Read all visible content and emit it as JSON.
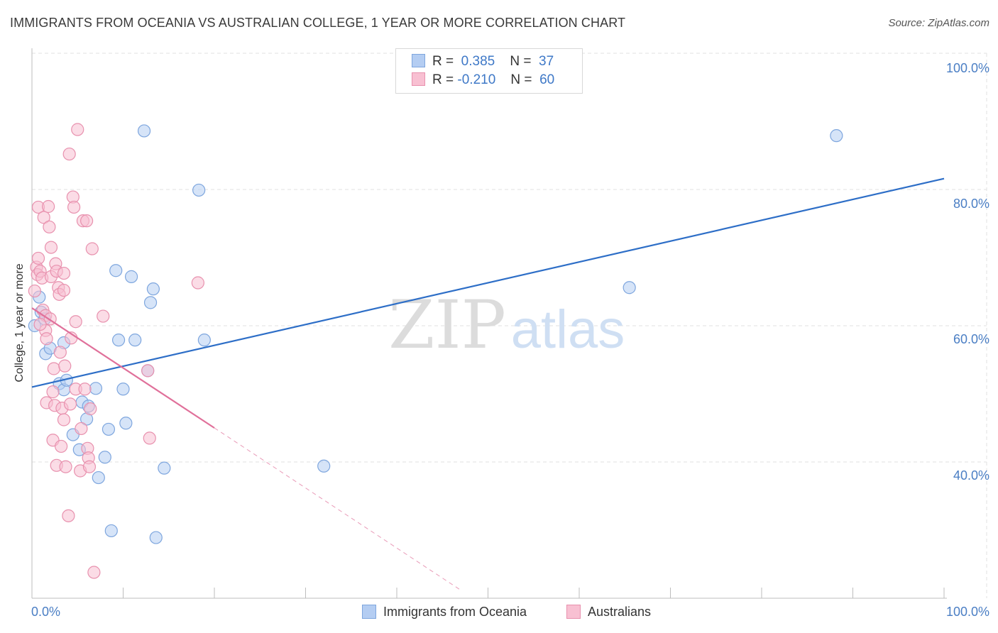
{
  "title": "IMMIGRANTS FROM OCEANIA VS AUSTRALIAN COLLEGE, 1 YEAR OR MORE CORRELATION CHART",
  "source": "Source: ZipAtlas.com",
  "watermark": {
    "zip": "ZIP",
    "atlas": "atlas"
  },
  "legend": {
    "r_label": "R =",
    "n_label": "N =",
    "series1": {
      "r": "0.385",
      "n": "37"
    },
    "series2": {
      "r": "-0.210",
      "n": "60"
    }
  },
  "bottom_legend": {
    "series1": "Immigrants from Oceania",
    "series2": "Australians"
  },
  "chart_data": {
    "type": "scatter",
    "title": "IMMIGRANTS FROM OCEANIA VS AUSTRALIAN COLLEGE, 1 YEAR OR MORE CORRELATION CHART",
    "xlabel": "",
    "ylabel": "College, 1 year or more",
    "xlim": [
      0,
      100
    ],
    "ylim": [
      20,
      100
    ],
    "x_tick_labels": [
      "0.0%",
      "100.0%"
    ],
    "y_ticks": [
      40,
      60,
      80,
      100
    ],
    "y_tick_labels": [
      "40.0%",
      "60.0%",
      "80.0%",
      "100.0%"
    ],
    "grid": true,
    "colors": {
      "series1_fill": "#b4cdf2",
      "series1_stroke": "#7ea6de",
      "series1_line": "#2d6ec7",
      "series2_fill": "#f8c0d2",
      "series2_stroke": "#e891ae",
      "series2_line": "#e0709a"
    },
    "series": [
      {
        "name": "Immigrants from Oceania",
        "r": 0.385,
        "n": 37,
        "trend": {
          "x0": 0,
          "y0": 51.0,
          "x1": 100,
          "y1": 81.6
        },
        "points": [
          [
            0.3,
            60.0
          ],
          [
            0.8,
            64.2
          ],
          [
            1.0,
            62.0
          ],
          [
            1.4,
            61.0
          ],
          [
            1.5,
            55.9
          ],
          [
            2.0,
            56.7
          ],
          [
            3.5,
            57.5
          ],
          [
            3.0,
            51.5
          ],
          [
            3.5,
            50.6
          ],
          [
            3.8,
            52.0
          ],
          [
            4.5,
            44.0
          ],
          [
            5.2,
            41.8
          ],
          [
            5.5,
            48.8
          ],
          [
            6.2,
            48.2
          ],
          [
            6.0,
            46.3
          ],
          [
            7.0,
            50.8
          ],
          [
            7.3,
            37.7
          ],
          [
            8.0,
            40.7
          ],
          [
            8.4,
            44.8
          ],
          [
            8.7,
            29.9
          ],
          [
            9.2,
            68.1
          ],
          [
            9.5,
            57.9
          ],
          [
            10.0,
            50.7
          ],
          [
            10.3,
            45.7
          ],
          [
            10.9,
            67.2
          ],
          [
            11.3,
            57.9
          ],
          [
            12.3,
            88.6
          ],
          [
            12.7,
            53.4
          ],
          [
            13.0,
            63.4
          ],
          [
            13.3,
            65.4
          ],
          [
            13.6,
            28.9
          ],
          [
            14.5,
            39.1
          ],
          [
            18.3,
            79.9
          ],
          [
            18.9,
            57.9
          ],
          [
            32.0,
            39.4
          ],
          [
            65.5,
            65.6
          ],
          [
            88.2,
            87.9
          ]
        ]
      },
      {
        "name": "Australians",
        "r": -0.21,
        "n": 60,
        "trend": {
          "x0": 0,
          "y0": 62.6,
          "x1": 20,
          "y1": 45.0
        },
        "trend_dashed": {
          "x0": 20,
          "y0": 45.0,
          "x1": 47,
          "y1": 21.2
        },
        "points": [
          [
            0.3,
            65.1
          ],
          [
            0.5,
            68.6
          ],
          [
            0.6,
            67.5
          ],
          [
            0.7,
            69.9
          ],
          [
            0.7,
            77.4
          ],
          [
            0.9,
            68.0
          ],
          [
            1.1,
            67.0
          ],
          [
            1.3,
            75.9
          ],
          [
            1.2,
            62.3
          ],
          [
            1.5,
            61.5
          ],
          [
            1.5,
            59.3
          ],
          [
            1.6,
            58.1
          ],
          [
            1.6,
            48.7
          ],
          [
            1.8,
            77.5
          ],
          [
            1.9,
            74.5
          ],
          [
            2.1,
            71.5
          ],
          [
            2.1,
            67.2
          ],
          [
            2.3,
            50.3
          ],
          [
            2.3,
            43.2
          ],
          [
            2.4,
            53.7
          ],
          [
            2.5,
            48.3
          ],
          [
            2.6,
            69.1
          ],
          [
            2.7,
            68.0
          ],
          [
            2.7,
            39.5
          ],
          [
            2.9,
            65.6
          ],
          [
            3.0,
            64.6
          ],
          [
            3.2,
            42.3
          ],
          [
            3.3,
            47.9
          ],
          [
            3.5,
            65.2
          ],
          [
            3.5,
            67.7
          ],
          [
            3.5,
            46.2
          ],
          [
            3.6,
            54.1
          ],
          [
            3.7,
            39.3
          ],
          [
            4.0,
            32.1
          ],
          [
            4.1,
            85.2
          ],
          [
            4.2,
            48.5
          ],
          [
            4.5,
            78.9
          ],
          [
            4.6,
            77.4
          ],
          [
            4.8,
            50.7
          ],
          [
            4.8,
            60.6
          ],
          [
            5.0,
            88.8
          ],
          [
            5.3,
            38.7
          ],
          [
            5.6,
            75.4
          ],
          [
            5.8,
            50.7
          ],
          [
            6.0,
            75.4
          ],
          [
            6.1,
            42.0
          ],
          [
            6.2,
            40.6
          ],
          [
            6.3,
            39.3
          ],
          [
            6.4,
            47.8
          ],
          [
            6.6,
            71.3
          ],
          [
            6.8,
            23.8
          ],
          [
            7.8,
            61.4
          ],
          [
            12.7,
            53.4
          ],
          [
            12.9,
            43.5
          ],
          [
            18.2,
            66.3
          ],
          [
            4.3,
            58.2
          ],
          [
            2.0,
            61.0
          ],
          [
            0.9,
            60.2
          ],
          [
            3.1,
            56.1
          ],
          [
            5.4,
            44.9
          ]
        ]
      }
    ]
  }
}
